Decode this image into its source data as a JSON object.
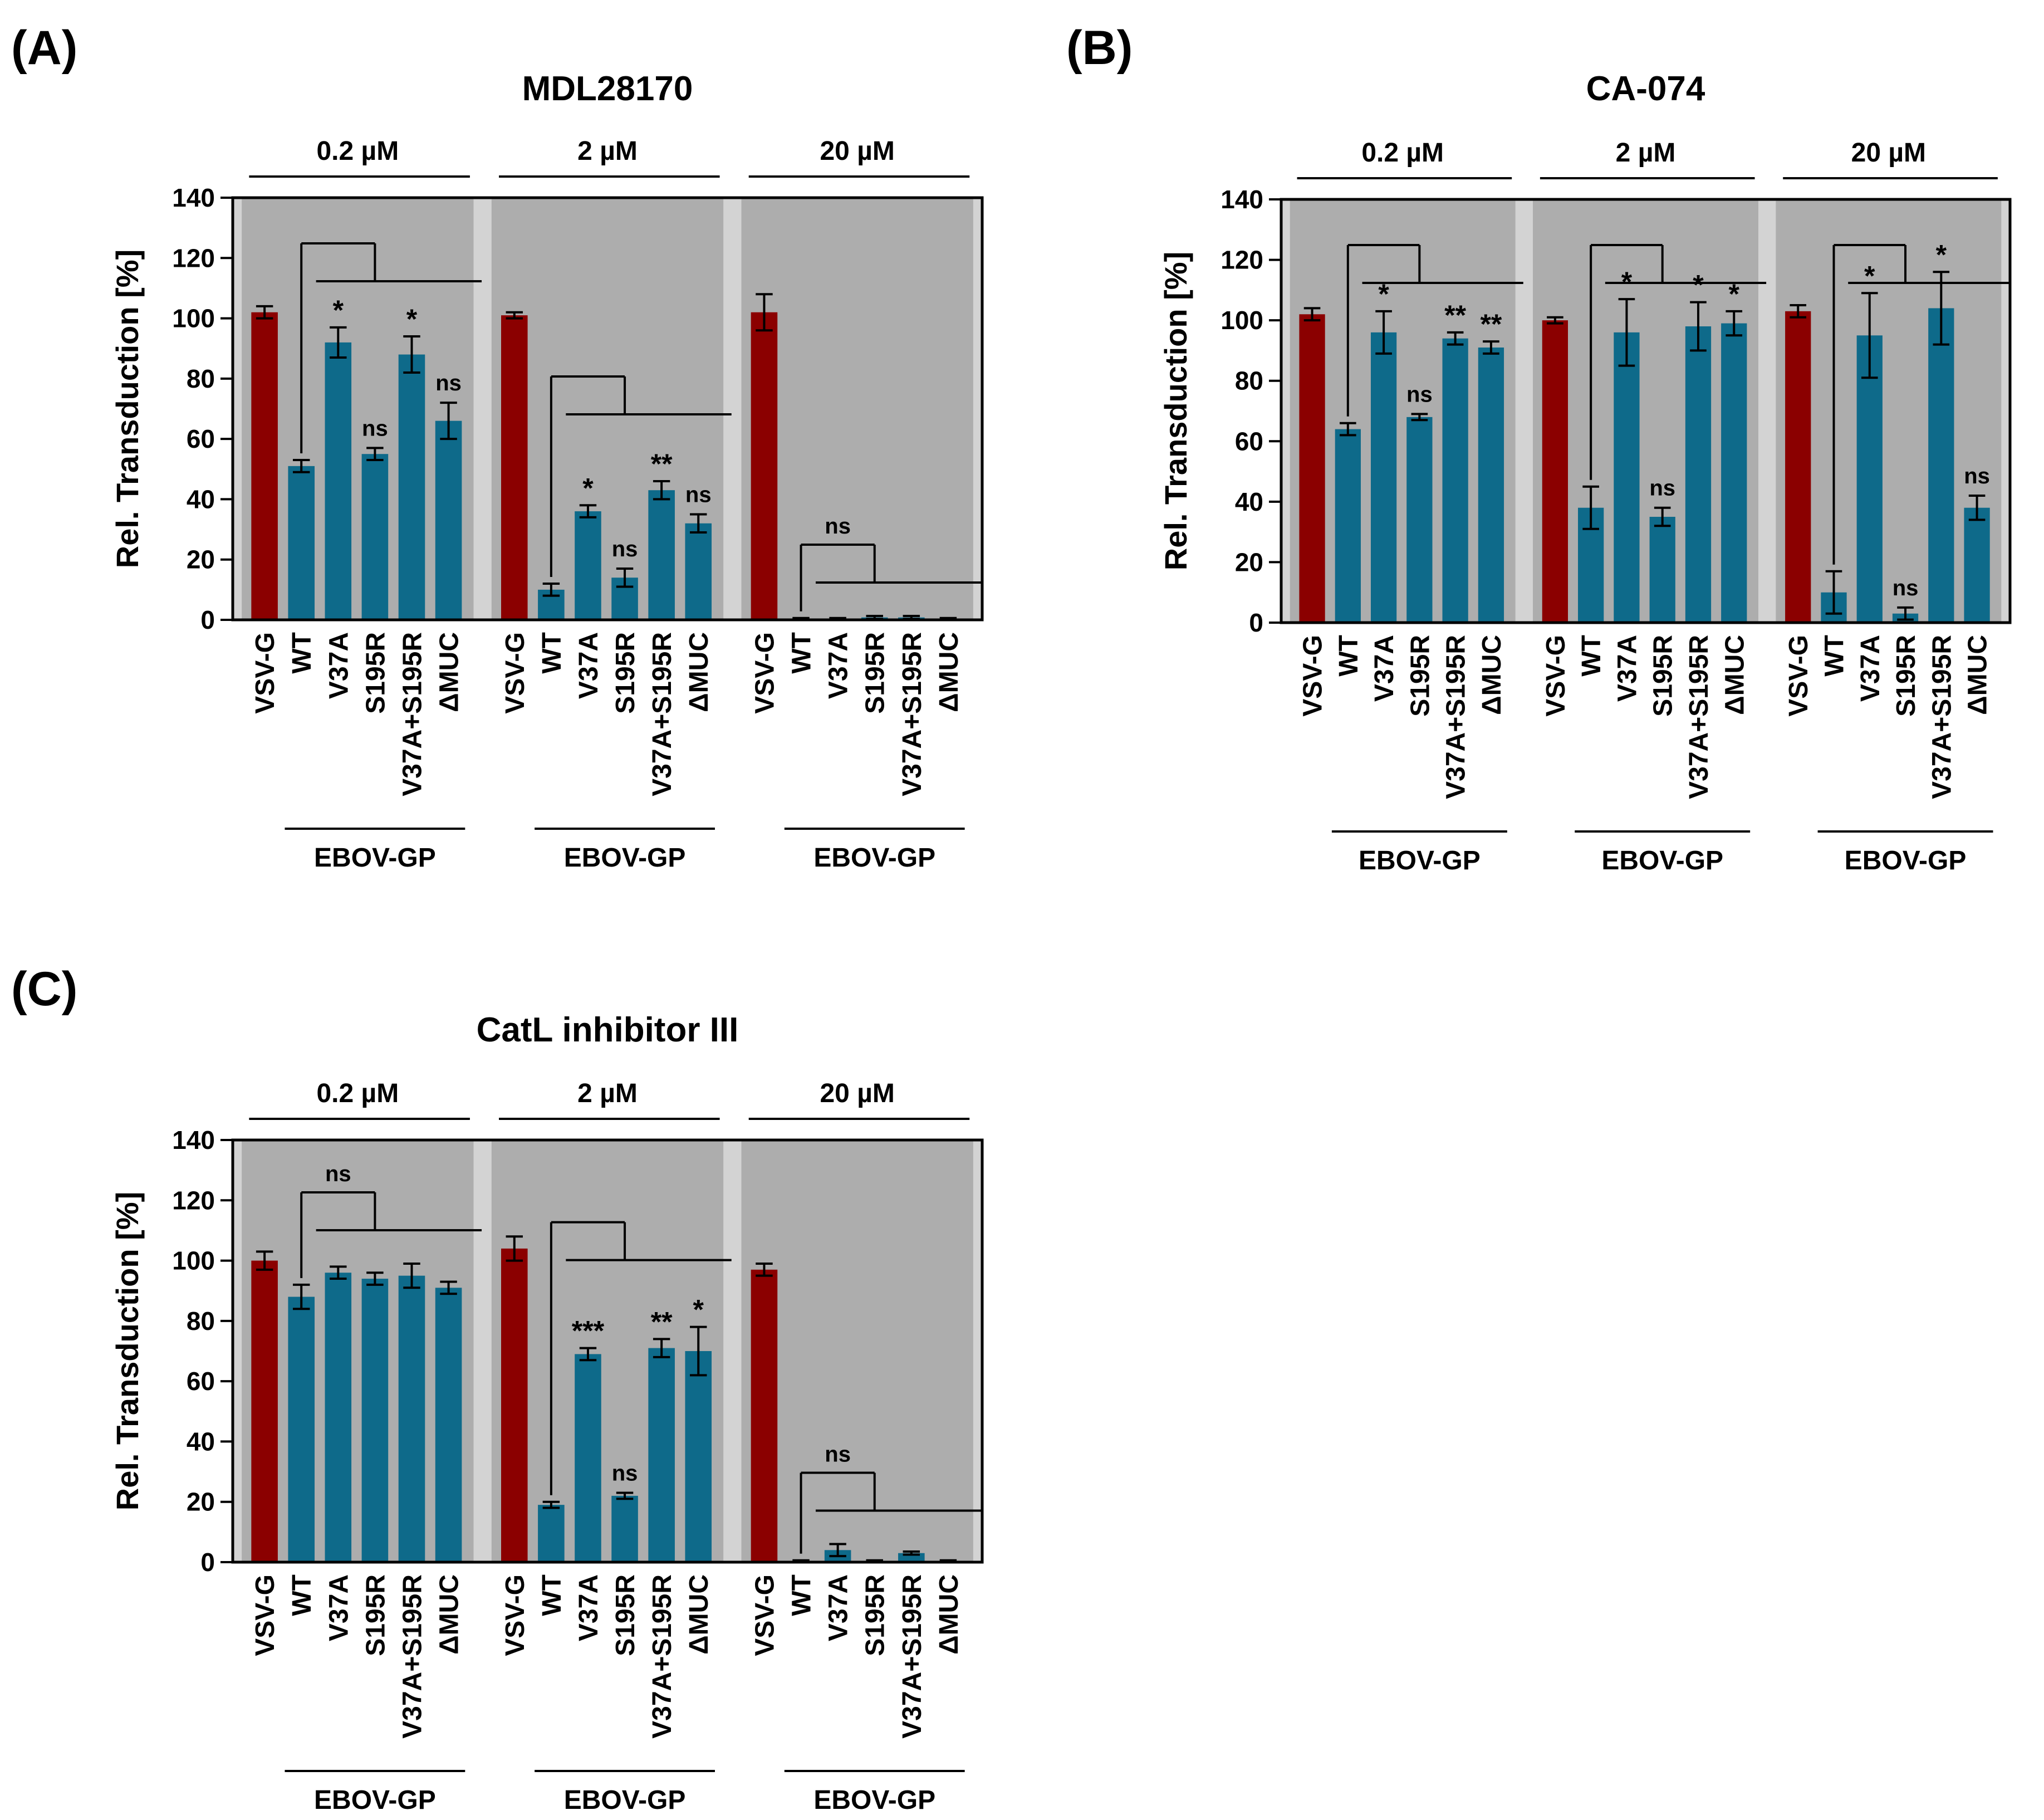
{
  "colors": {
    "control_bar": "#8b0000",
    "ebov_bar": "#0e6a8a",
    "plot_bg": "#adadad",
    "gap_bg": "#d3d3d3",
    "axis": "#000000"
  },
  "shared": {
    "ylabel": "Rel. Transduction [%]",
    "yticks": [
      0,
      20,
      40,
      60,
      80,
      100,
      120,
      140
    ],
    "ylim": [
      0,
      140
    ],
    "categories": [
      "VSV-G",
      "WT",
      "V37A",
      "S195R",
      "V37A+S195R",
      "ΔMUC"
    ],
    "group_label": "EBOV-GP"
  },
  "chart_data": [
    {
      "type": "bar",
      "panel_label": "(A)",
      "title": "MDL28170",
      "ylabel": "Rel. Transduction [%]",
      "ylim": [
        0,
        140
      ],
      "groups": [
        {
          "concentration": "0.2 µM",
          "categories": [
            "VSV-G",
            "WT",
            "V37A",
            "S195R",
            "V37A+S195R",
            "ΔMUC"
          ],
          "values": [
            102,
            51,
            92,
            55,
            88,
            66
          ],
          "errors": [
            2,
            2,
            5,
            2,
            6,
            6
          ],
          "significance": [
            "",
            "",
            "*",
            "ns",
            "*",
            "ns"
          ],
          "bracket_label": ""
        },
        {
          "concentration": "2 µM",
          "categories": [
            "VSV-G",
            "WT",
            "V37A",
            "S195R",
            "V37A+S195R",
            "ΔMUC"
          ],
          "values": [
            101,
            10,
            36,
            14,
            43,
            32
          ],
          "errors": [
            1,
            2,
            2,
            3,
            3,
            3
          ],
          "significance": [
            "",
            "",
            "*",
            "ns",
            "**",
            "ns"
          ],
          "bracket_label": ""
        },
        {
          "concentration": "20 µM",
          "categories": [
            "VSV-G",
            "WT",
            "V37A",
            "S195R",
            "V37A+S195R",
            "ΔMUC"
          ],
          "values": [
            102,
            0.3,
            0.3,
            0.8,
            0.8,
            0.3
          ],
          "errors": [
            6,
            0.3,
            0.3,
            0.5,
            0.5,
            0.3
          ],
          "significance": [
            "",
            "",
            "",
            "",
            "",
            ""
          ],
          "bracket_label": "ns"
        }
      ]
    },
    {
      "type": "bar",
      "panel_label": "(B)",
      "title": "CA-074",
      "ylabel": "Rel. Transduction [%]",
      "ylim": [
        0,
        140
      ],
      "groups": [
        {
          "concentration": "0.2 µM",
          "categories": [
            "VSV-G",
            "WT",
            "V37A",
            "S195R",
            "V37A+S195R",
            "ΔMUC"
          ],
          "values": [
            102,
            64,
            96,
            68,
            94,
            91
          ],
          "errors": [
            2,
            2,
            7,
            1,
            2,
            2
          ],
          "significance": [
            "",
            "",
            "*",
            "ns",
            "**",
            "**"
          ],
          "bracket_label": ""
        },
        {
          "concentration": "2 µM",
          "categories": [
            "VSV-G",
            "WT",
            "V37A",
            "S195R",
            "V37A+S195R",
            "ΔMUC"
          ],
          "values": [
            100,
            38,
            96,
            35,
            98,
            99
          ],
          "errors": [
            1,
            7,
            11,
            3,
            8,
            4
          ],
          "significance": [
            "",
            "",
            "*",
            "ns",
            "*",
            "*"
          ],
          "bracket_label": ""
        },
        {
          "concentration": "20 µM",
          "categories": [
            "VSV-G",
            "WT",
            "V37A",
            "S195R",
            "V37A+S195R",
            "ΔMUC"
          ],
          "values": [
            103,
            10,
            95,
            3,
            104,
            38
          ],
          "errors": [
            2,
            7,
            14,
            2,
            12,
            4
          ],
          "significance": [
            "",
            "",
            "*",
            "ns",
            "*",
            "ns"
          ],
          "bracket_label": ""
        }
      ]
    },
    {
      "type": "bar",
      "panel_label": "(C)",
      "title": "CatL inhibitor III",
      "ylabel": "Rel. Transduction [%]",
      "ylim": [
        0,
        140
      ],
      "groups": [
        {
          "concentration": "0.2 µM",
          "categories": [
            "VSV-G",
            "WT",
            "V37A",
            "S195R",
            "V37A+S195R",
            "ΔMUC"
          ],
          "values": [
            100,
            88,
            96,
            94,
            95,
            91
          ],
          "errors": [
            3,
            4,
            2,
            2,
            4,
            2
          ],
          "significance": [
            "",
            "",
            "",
            "",
            "",
            ""
          ],
          "bracket_label": "ns"
        },
        {
          "concentration": "2 µM",
          "categories": [
            "VSV-G",
            "WT",
            "V37A",
            "S195R",
            "V37A+S195R",
            "ΔMUC"
          ],
          "values": [
            104,
            19,
            69,
            22,
            71,
            70
          ],
          "errors": [
            4,
            1,
            2,
            1,
            3,
            8
          ],
          "significance": [
            "",
            "",
            "***",
            "ns",
            "**",
            "*"
          ],
          "bracket_label": ""
        },
        {
          "concentration": "20 µM",
          "categories": [
            "VSV-G",
            "WT",
            "V37A",
            "S195R",
            "V37A+S195R",
            "ΔMUC"
          ],
          "values": [
            97,
            0.3,
            4,
            0.3,
            3,
            0.3
          ],
          "errors": [
            2,
            0.3,
            2,
            0.3,
            0.5,
            0.3
          ],
          "significance": [
            "",
            "",
            "",
            "",
            "",
            ""
          ],
          "bracket_label": "ns"
        }
      ]
    }
  ]
}
